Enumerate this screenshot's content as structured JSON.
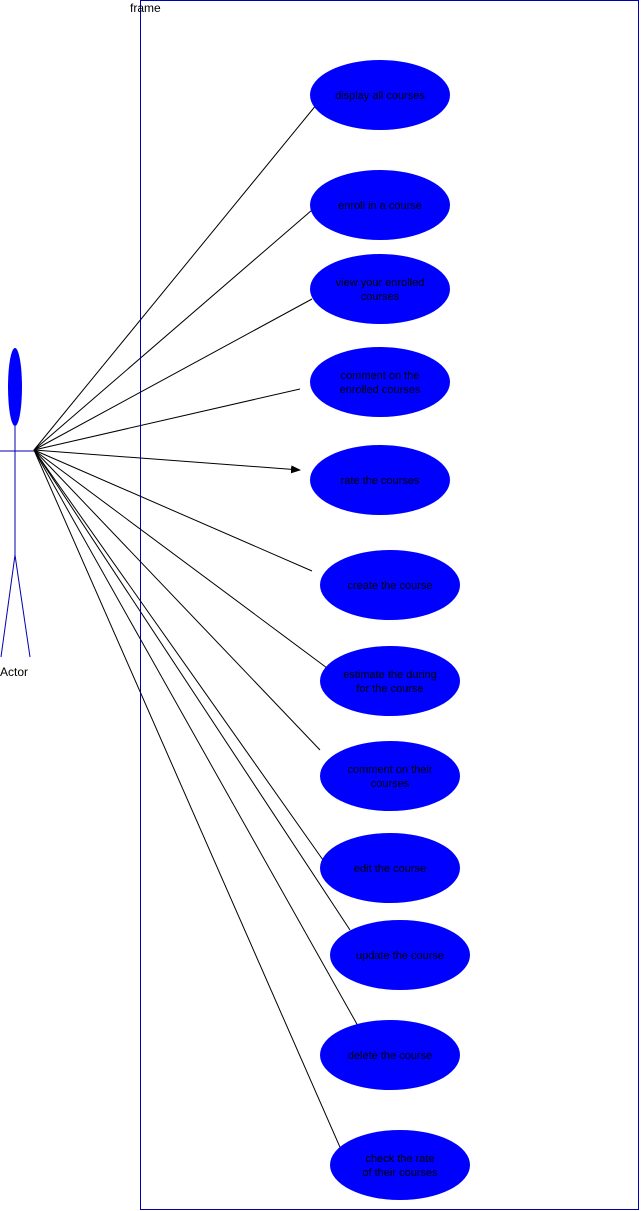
{
  "frame": {
    "label": "frame"
  },
  "actor": {
    "label": "Actor"
  },
  "colors": {
    "usecase_fill": "#0000ff",
    "frame_stroke": "#0000b3",
    "line": "#000000"
  },
  "use_cases": [
    {
      "id": "display-all-courses",
      "lines": [
        "display all courses"
      ]
    },
    {
      "id": "enroll-in-a-course",
      "lines": [
        "enroll in a course"
      ]
    },
    {
      "id": "view-enrolled-courses",
      "lines": [
        "view  your enrolled",
        "courses"
      ]
    },
    {
      "id": "comment-on-enrolled-courses",
      "lines": [
        "comment on the",
        "enrolled courses"
      ]
    },
    {
      "id": "rate-the-courses",
      "lines": [
        "rate the courses"
      ]
    },
    {
      "id": "create-the-course",
      "lines": [
        "create the course"
      ]
    },
    {
      "id": "estimate-the-during",
      "lines": [
        "estimate the during",
        "for the course"
      ]
    },
    {
      "id": "comment-on-their-courses",
      "lines": [
        "comment on their",
        "courses"
      ]
    },
    {
      "id": "edit-the-course",
      "lines": [
        "edit the course"
      ]
    },
    {
      "id": "update-the-course",
      "lines": [
        "update the course"
      ]
    },
    {
      "id": "delete-the-course",
      "lines": [
        "delete the course"
      ]
    },
    {
      "id": "check-the-rate",
      "lines": [
        "check the rate",
        "of their courses"
      ]
    }
  ]
}
